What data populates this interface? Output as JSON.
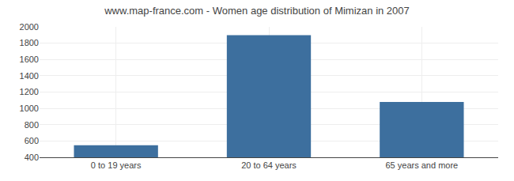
{
  "chart_data": {
    "type": "bar",
    "title": "www.map-france.com - Women age distribution of Mimizan in 2007",
    "categories": [
      "0 to 19 years",
      "20 to 64 years",
      "65 years and more"
    ],
    "values": [
      549,
      1898,
      1079
    ],
    "color": "#3d6f9e",
    "ylim": [
      400,
      2000
    ],
    "yticks": [
      400,
      600,
      800,
      1000,
      1200,
      1400,
      1600,
      1800,
      2000
    ],
    "grid": true
  }
}
